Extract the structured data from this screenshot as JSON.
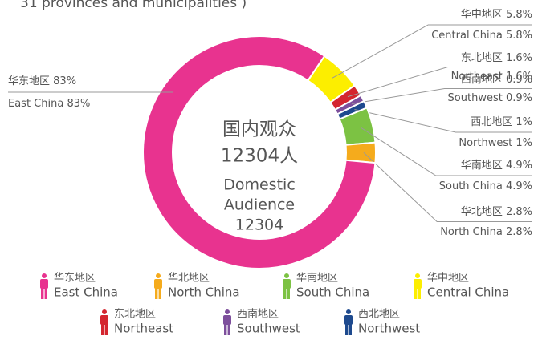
{
  "chart_data": {
    "type": "pie",
    "subtitle": "31 provinces and municipalities )",
    "center_text": [
      "国内观众",
      "12304人",
      "Domestic",
      "Audience",
      "12304"
    ],
    "categories": [
      "华中地区",
      "东北地区",
      "西南地区",
      "西北地区",
      "华南地区",
      "华北地区",
      "华东地区"
    ],
    "categories_en": [
      "Central China",
      "Northeast",
      "Southwest",
      "Northwest",
      "South China",
      "North China",
      "East China"
    ],
    "values": [
      5.8,
      1.6,
      0.9,
      1,
      4.9,
      2.8,
      83
    ],
    "value_labels": [
      "5.8%",
      "1.6%",
      "0.9%",
      "1%",
      "4.9%",
      "2.8%",
      "83%"
    ],
    "colors": [
      "#fcee00",
      "#d4262f",
      "#7d4f9c",
      "#1e4a8e",
      "#7cc243",
      "#f5ab1c",
      "#e8338f"
    ],
    "legend": [
      {
        "name": "华东地区",
        "name_en": "East China",
        "color": "#e8338f"
      },
      {
        "name": "华北地区",
        "name_en": "North China",
        "color": "#f5ab1c"
      },
      {
        "name": "华南地区",
        "name_en": "South China",
        "color": "#7cc243"
      },
      {
        "name": "华中地区",
        "name_en": "Central China",
        "color": "#fcee00"
      },
      {
        "name": "东北地区",
        "name_en": "Northeast",
        "color": "#d4262f"
      },
      {
        "name": "西南地区",
        "name_en": "Southwest",
        "color": "#7d4f9c"
      },
      {
        "name": "西北地区",
        "name_en": "Northwest",
        "color": "#1e4a8e"
      }
    ]
  }
}
